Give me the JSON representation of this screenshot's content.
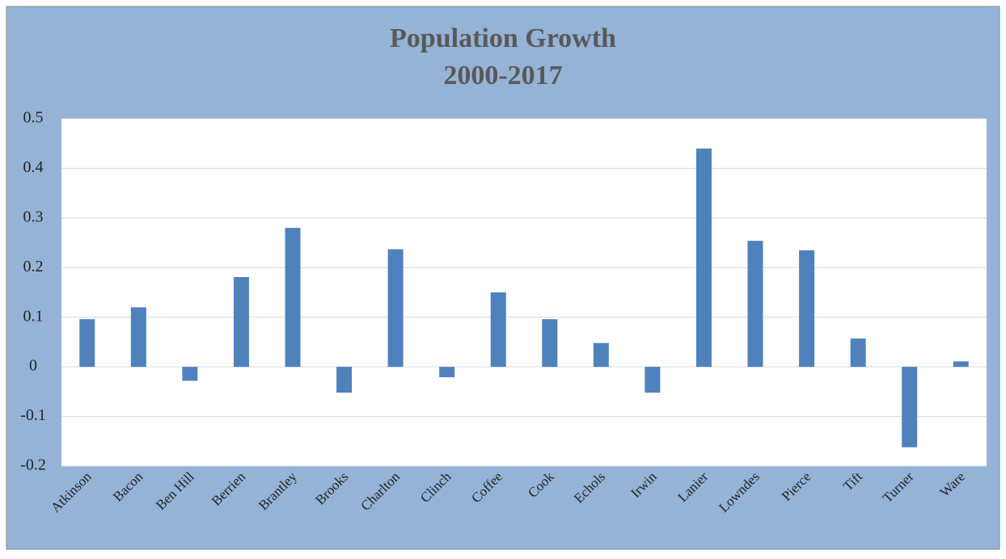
{
  "chart_data": {
    "type": "bar",
    "title": "Population Growth",
    "subtitle": "2000-2017",
    "categories": [
      "Atkinson",
      "Bacon",
      "Ben Hill",
      "Berrien",
      "Brantley",
      "Brooks",
      "Charlton",
      "Clinch",
      "Coffee",
      "Cook",
      "Echols",
      "Irwin",
      "Lanier",
      "Lowndes",
      "Pierce",
      "Tift",
      "Turner",
      "Ware"
    ],
    "values": [
      0.096,
      0.12,
      -0.028,
      0.181,
      0.28,
      -0.052,
      0.237,
      -0.021,
      0.15,
      0.096,
      0.048,
      -0.052,
      0.44,
      0.254,
      0.235,
      0.057,
      -0.162,
      0.011
    ],
    "color": "#4f81bd",
    "ylim": [
      -0.2,
      0.5
    ],
    "yticks": [
      -0.2,
      -0.1,
      0,
      0.1,
      0.2,
      0.3,
      0.4,
      0.5
    ],
    "grid": true
  }
}
